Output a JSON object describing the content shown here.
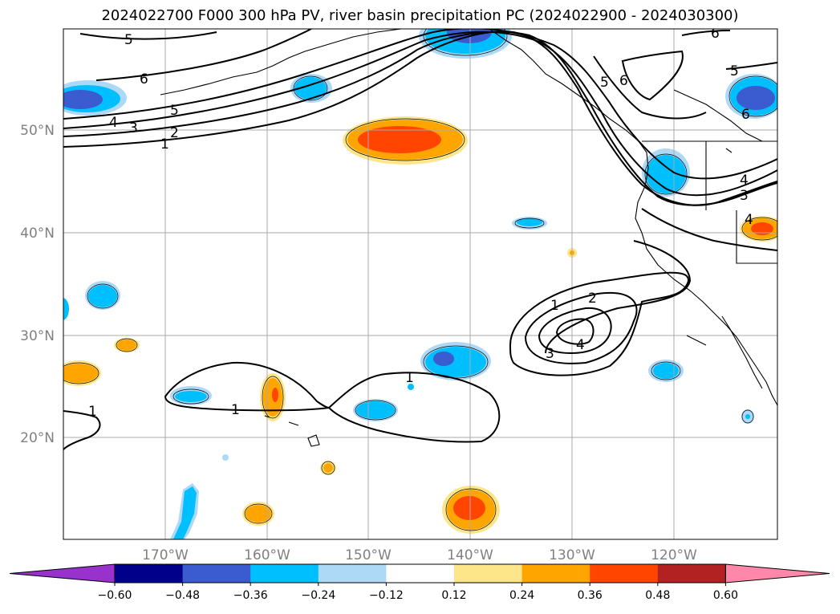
{
  "title": "2024022700 F000 300 hPa PV, river basin precipitation PC (2024022900 - 2024030300)",
  "lat_labels": [
    "50°N",
    "40°N",
    "30°N",
    "20°N"
  ],
  "lon_labels": [
    "170°W",
    "160°W",
    "150°W",
    "140°W",
    "130°W",
    "120°W"
  ],
  "contour_labels": [
    "5",
    "6",
    "5",
    "4",
    "3",
    "2",
    "1",
    "5",
    "6",
    "6",
    "5",
    "6",
    "4",
    "3",
    "1",
    "2",
    "3",
    "4",
    "1",
    "1",
    "1",
    "4"
  ],
  "colorbar": {
    "tick_labels": [
      "−0.60",
      "−0.48",
      "−0.36",
      "−0.24",
      "−0.12",
      "0.12",
      "0.24",
      "0.36",
      "0.48",
      "0.60"
    ],
    "colors": [
      "#9932cc",
      "#00008b",
      "#3b5bd0",
      "#00bfff",
      "#add8f6",
      "#ffffff",
      "#fde68a",
      "#ffa500",
      "#ff4500",
      "#b22222",
      "#ff88aa"
    ]
  }
}
